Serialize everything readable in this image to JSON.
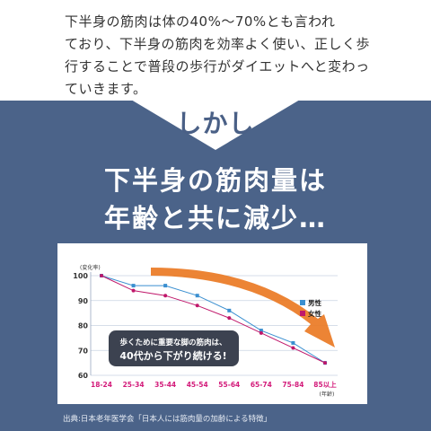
{
  "intro": {
    "lines": [
      "下半身の筋肉は体の40%〜70%とも言われ",
      "ており、下半身の筋肉を効率よく使い、正しく歩",
      "行することで普段の歩行がダイエットへと変わっ",
      "ていきます。"
    ]
  },
  "banner": {
    "shikashi": "しかし",
    "headline_line1": "下半身の筋肉量は",
    "headline_line2": "年齢と共に減少…",
    "bg_color": "#4b6389",
    "text_color": "#ffffff"
  },
  "chart_data": {
    "type": "line",
    "ylabel": "(変化率)",
    "xlabel": "(年齢)",
    "ylim": [
      60,
      100
    ],
    "yticks": [
      100,
      90,
      80,
      70,
      60
    ],
    "categories": [
      "18-24",
      "25-34",
      "35-44",
      "45-54",
      "55-64",
      "65-74",
      "75-84",
      "85以上"
    ],
    "series": [
      {
        "name": "男性",
        "color": "#3a8fd0",
        "values": [
          100,
          96,
          96,
          92,
          86,
          78,
          73,
          65
        ]
      },
      {
        "name": "女性",
        "color": "#c0176a",
        "values": [
          100,
          94,
          92,
          88,
          83,
          77,
          71,
          65
        ]
      }
    ],
    "legend_position": "right",
    "annotation_line1": "歩くために重要な脚の筋肉は、",
    "annotation_line2": "40代から下がり続ける!",
    "trend_arrow_color": "#ea7a24"
  },
  "source": {
    "text": "出典:日本老年医学会「日本人には筋肉量の加齢による特徴」"
  }
}
